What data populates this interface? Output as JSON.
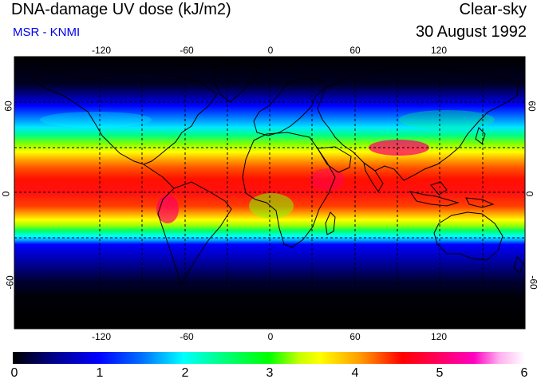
{
  "header": {
    "title": "DNA-damage UV dose (kJ/m2)",
    "subtitle": "MSR - KNMI",
    "sky": "Clear-sky",
    "date": "30 August 1992"
  },
  "axes": {
    "lon_ticks": [
      "-120",
      "-60",
      "0",
      "60",
      "120"
    ],
    "lat_ticks": [
      "60",
      "0",
      "-60"
    ],
    "lon_range": [
      -180,
      180
    ],
    "lat_range": [
      -90,
      90
    ],
    "gridline_style": "dashed",
    "gridlines_lon": [
      -120,
      -90,
      -60,
      -30,
      0,
      30,
      60,
      90,
      120,
      150
    ],
    "gridlines_lat": [
      -60,
      -30,
      0,
      30,
      60
    ]
  },
  "colorbar": {
    "labels": [
      "0",
      "1",
      "2",
      "3",
      "4",
      "5",
      "6"
    ],
    "min": 0,
    "max": 6,
    "colormap": [
      "#000000",
      "#0000ff",
      "#00ffff",
      "#00ff00",
      "#ffff00",
      "#ff0000",
      "#ff00c0",
      "#ffffff"
    ]
  },
  "colors": {
    "subtitle": "#0000ee",
    "ocean_low": "#000000",
    "coastline": "#000000"
  }
}
